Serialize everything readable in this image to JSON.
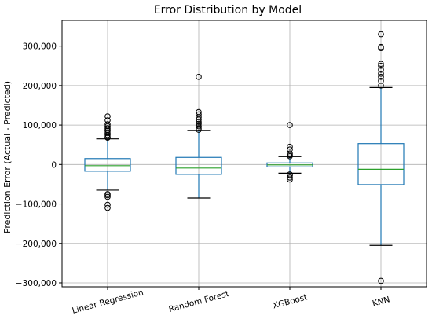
{
  "chart_data": {
    "type": "box",
    "title": "Error Distribution by Model",
    "xlabel": "",
    "ylabel": "Prediction Error (Actual - Predicted)",
    "ylim": [
      -310000,
      365000
    ],
    "yticks": [
      -300000,
      -200000,
      -100000,
      0,
      100000,
      200000,
      300000
    ],
    "ytick_labels": [
      "−300,000",
      "−200,000",
      "−100,000",
      "0",
      "100,000",
      "200,000",
      "300,000"
    ],
    "grid": true,
    "categories": [
      "Linear Regression",
      "Random Forest",
      "XGBoost",
      "KNN"
    ],
    "boxes": [
      {
        "name": "Linear Regression",
        "whisker_low": -65000,
        "q1": -17000,
        "median": -3000,
        "q3": 15000,
        "whisker_high": 65000,
        "outliers": [
          -110000,
          -102000,
          -82000,
          -78000,
          -75000,
          68000,
          70000,
          75000,
          80000,
          85000,
          88000,
          92000,
          97000,
          102000,
          112000,
          122000
        ]
      },
      {
        "name": "Random Forest",
        "whisker_low": -85000,
        "q1": -25000,
        "median": -9000,
        "q3": 18000,
        "whisker_high": 86000,
        "outliers": [
          88000,
          92000,
          97000,
          103000,
          108000,
          114000,
          120000,
          127000,
          133000,
          222000
        ]
      },
      {
        "name": "XGBoost",
        "whisker_low": -22000,
        "q1": -6000,
        "median": -1000,
        "q3": 4000,
        "whisker_high": 20000,
        "outliers": [
          -38000,
          -33000,
          -28000,
          -25000,
          21000,
          24000,
          28000,
          38000,
          45000,
          100000
        ]
      },
      {
        "name": "KNN",
        "whisker_low": -205000,
        "q1": -51000,
        "median": -12000,
        "q3": 53000,
        "whisker_high": 195000,
        "outliers": [
          -295000,
          200000,
          212000,
          222000,
          230000,
          240000,
          250000,
          255000,
          295000,
          298000,
          330000
        ]
      }
    ],
    "colors": {
      "box": "#1f77b4",
      "median": "#2ca02c",
      "whisker_cap": "#000000",
      "grid": "#b0b0b0"
    }
  }
}
